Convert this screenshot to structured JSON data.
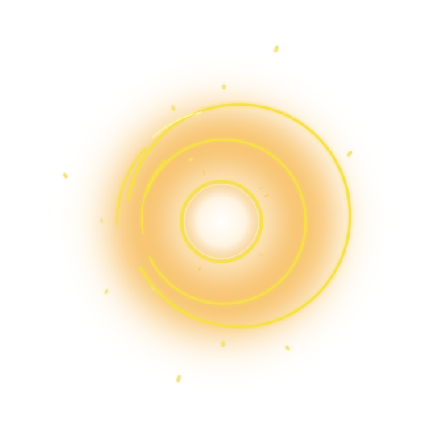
{
  "effect": {
    "name": "golden-glowing-rings",
    "colors": {
      "glow": "#f4a623",
      "glow_soft": "#fbd48a",
      "ring": "#f7e04a",
      "ring_highlight": "#fff6a8",
      "core": "#fffaf0",
      "particle": "#f2e37a",
      "background": "#ffffff"
    },
    "ring_count": 3,
    "particle_count": 12
  }
}
